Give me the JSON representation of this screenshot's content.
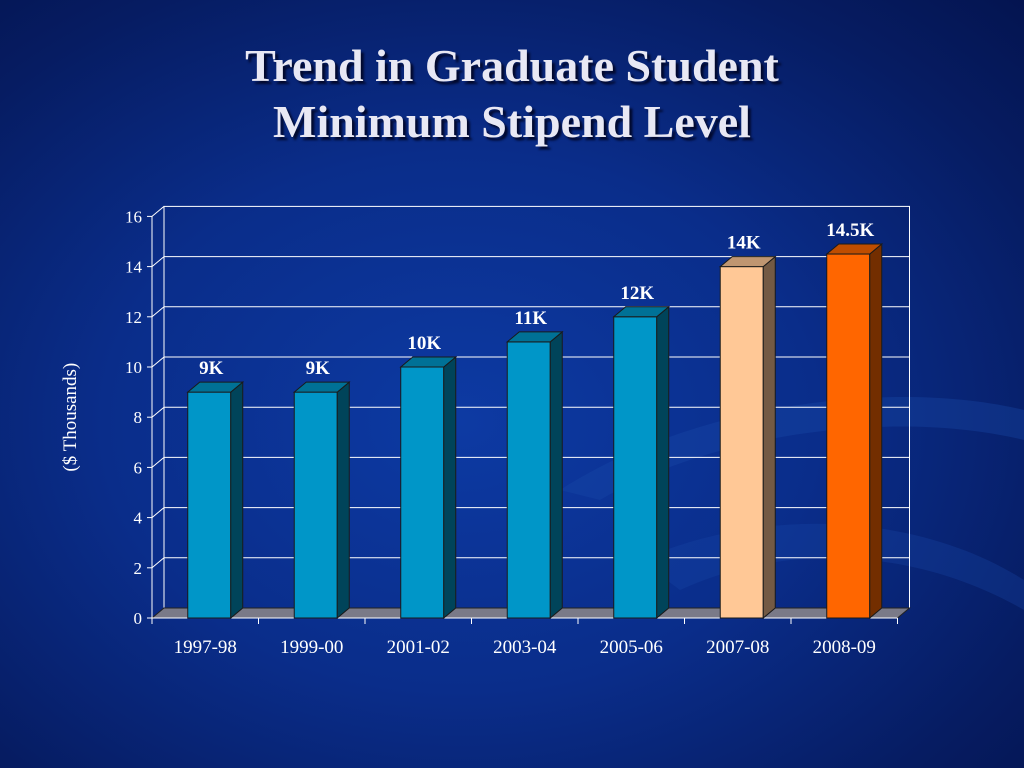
{
  "slide": {
    "title_line1": "Trend in Graduate Student",
    "title_line2": "Minimum Stipend Level"
  },
  "colors": {
    "background": "#0a2d8a",
    "bar_blue": "#0096c8",
    "bar_peach": "#ffc896",
    "bar_orange": "#ff6600",
    "floor": "#7a7a88"
  },
  "chart_data": {
    "type": "bar",
    "ylabel": "($ Thousands)",
    "ylim": [
      0,
      16
    ],
    "yticks": [
      0,
      2,
      4,
      6,
      8,
      10,
      12,
      14,
      16
    ],
    "grid": true,
    "categories": [
      "1997-98",
      "1999-00",
      "2001-02",
      "2003-04",
      "2005-06",
      "2007-08",
      "2008-09"
    ],
    "values": [
      9,
      9,
      10,
      11,
      12,
      14,
      14.5
    ],
    "data_labels": [
      "9K",
      "9K",
      "10K",
      "11K",
      "12K",
      "14K",
      "14.5K"
    ],
    "bar_colors": [
      "#0096c8",
      "#0096c8",
      "#0096c8",
      "#0096c8",
      "#0096c8",
      "#ffc896",
      "#ff6600"
    ]
  }
}
